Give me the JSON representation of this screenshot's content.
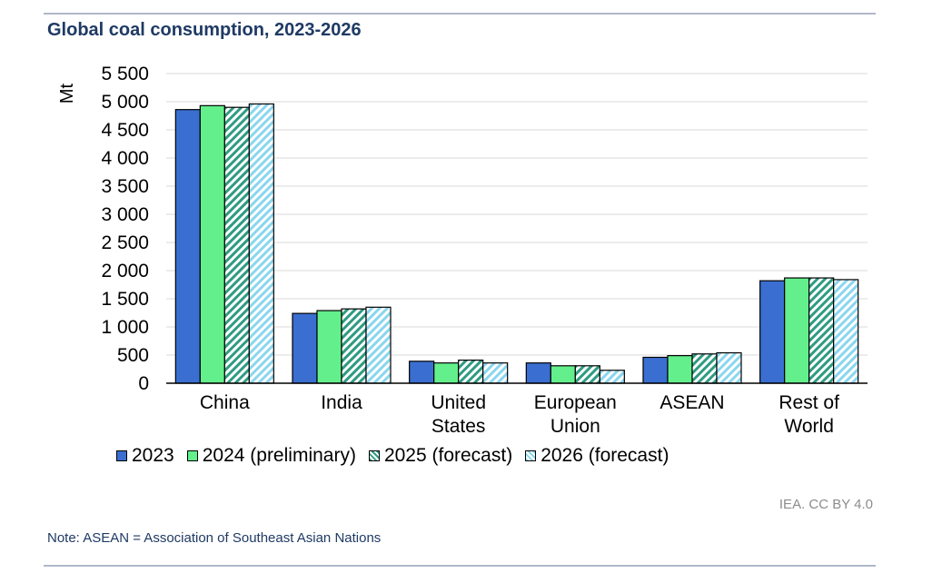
{
  "title": "Global coal consumption, 2023-2026",
  "credit": "IEA. CC BY 4.0",
  "note": "Note: ASEAN = Association of Southeast Asian Nations",
  "chart_data": {
    "type": "bar",
    "ylabel": "Mt",
    "ylim": [
      0,
      5500
    ],
    "yticks": [
      0,
      500,
      1000,
      1500,
      2000,
      2500,
      3000,
      3500,
      4000,
      4500,
      5000,
      5500
    ],
    "ytick_labels": [
      "0",
      "500",
      "1 000",
      "1 500",
      "2 000",
      "2 500",
      "3 000",
      "3 500",
      "4 000",
      "4 500",
      "5 000",
      "5 500"
    ],
    "grid": true,
    "legend_position": "bottom",
    "categories": [
      [
        "China"
      ],
      [
        "India"
      ],
      [
        "United",
        "States"
      ],
      [
        "European",
        "Union"
      ],
      [
        "ASEAN"
      ],
      [
        "Rest of",
        "World"
      ]
    ],
    "series": [
      {
        "name": "2023",
        "color": "#3a6fd1",
        "pattern": "solid",
        "values": [
          4860,
          1240,
          390,
          360,
          460,
          1820
        ]
      },
      {
        "name": "2024 (preliminary)",
        "color": "#63f08c",
        "pattern": "solid",
        "values": [
          4930,
          1290,
          360,
          310,
          490,
          1870
        ]
      },
      {
        "name": "2025 (forecast)",
        "color": "#2e9b82",
        "pattern": "hatch",
        "values": [
          4900,
          1320,
          410,
          310,
          520,
          1870
        ]
      },
      {
        "name": "2026 (forecast)",
        "color": "#8ad6ee",
        "pattern": "hatch",
        "values": [
          4960,
          1350,
          360,
          230,
          540,
          1840
        ]
      }
    ]
  }
}
